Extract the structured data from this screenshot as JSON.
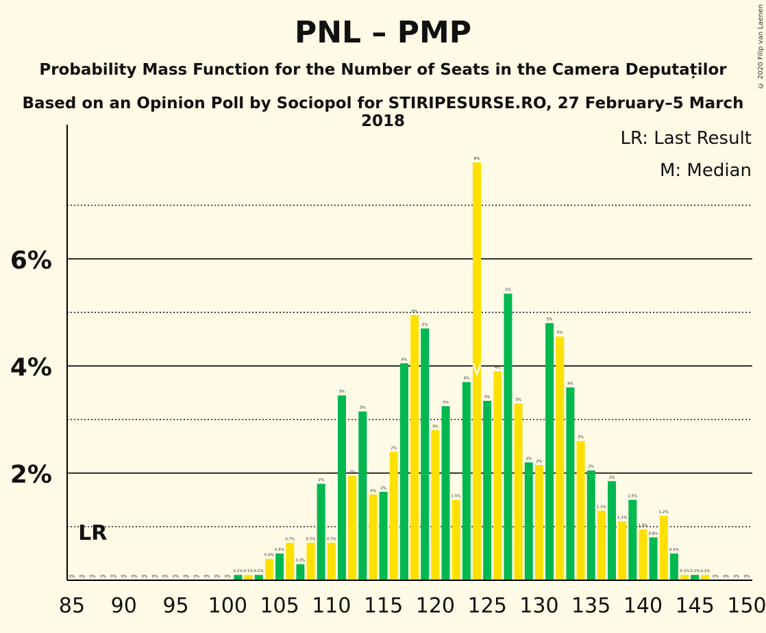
{
  "title": "PNL – PMP",
  "subtitle": "Probability Mass Function for the Number of Seats in the Camera Deputaților",
  "subtitle2": "Based on an Opinion Poll by Sociopol for STIRIPESURSE.RO, 27 February–5 March 2018",
  "copyright": "© 2020 Filip van Laenen",
  "colors": {
    "green": "#00b84f",
    "yellow": "#ffe000",
    "background": "#fffbe6",
    "axis": "#000000"
  },
  "chart_data": {
    "type": "bar",
    "x": [
      85,
      86,
      87,
      88,
      89,
      90,
      91,
      92,
      93,
      94,
      95,
      96,
      97,
      98,
      99,
      100,
      101,
      102,
      103,
      104,
      105,
      106,
      107,
      108,
      109,
      110,
      111,
      112,
      113,
      114,
      115,
      116,
      117,
      118,
      119,
      120,
      121,
      122,
      123,
      124,
      125,
      126,
      127,
      128,
      129,
      130,
      131,
      132,
      133,
      134,
      135,
      136,
      137,
      138,
      139,
      140,
      141,
      142,
      143,
      144,
      145,
      146,
      147,
      148,
      149,
      150
    ],
    "values": [
      0,
      0,
      0,
      0,
      0,
      0,
      0,
      0,
      0,
      0,
      0,
      0,
      0,
      0,
      0,
      0,
      0.1,
      0.1,
      0.1,
      0.4,
      0.5,
      0.7,
      0.3,
      0.7,
      1.8,
      0.7,
      3.45,
      1.95,
      3.15,
      1.6,
      1.65,
      2.4,
      4.05,
      4.95,
      4.7,
      2.8,
      3.25,
      1.5,
      3.7,
      7.8,
      3.35,
      3.9,
      5.35,
      3.3,
      2.2,
      2.15,
      4.8,
      4.55,
      3.6,
      2.6,
      2.05,
      1.3,
      1.85,
      1.1,
      1.5,
      0.95,
      0.8,
      1.2,
      0.5,
      0.1,
      0.1,
      0.1,
      0,
      0,
      0,
      0
    ],
    "labels": [
      "0%",
      "0%",
      "0%",
      "0%",
      "0%",
      "0%",
      "0%",
      "0%",
      "0%",
      "0%",
      "0%",
      "0%",
      "0%",
      "0%",
      "0%",
      "0%",
      "0.1%",
      "0.1%",
      "0.1%",
      "0.4%",
      "0.5%",
      "0.7%",
      "0.3%",
      "0.7%",
      "2%",
      "0.7%",
      "3%",
      "2%",
      "3%",
      "2%",
      "2%",
      "2%",
      "4%",
      "5%",
      "5%",
      "3%",
      "3%",
      "1.5%",
      "4%",
      "8%",
      "3%",
      "4%",
      "5%",
      "3%",
      "2%",
      "2%",
      "5%",
      "5%",
      "4%",
      "3%",
      "2%",
      "1.3%",
      "2%",
      "1.1%",
      "1.5%",
      "1.0%",
      "0.8%",
      "1.2%",
      "0.5%",
      "0.1%",
      "0.1%",
      "0.1%",
      "0%",
      "0%",
      "0%",
      "0%"
    ],
    "x_ticks": [
      "85",
      "90",
      "95",
      "100",
      "105",
      "110",
      "115",
      "120",
      "125",
      "130",
      "135",
      "140",
      "145",
      "150"
    ],
    "y_ticks": [
      "2%",
      "4%",
      "6%"
    ],
    "ylim": [
      0,
      8.5
    ],
    "last_result": {
      "seat": 87,
      "label": "LR"
    },
    "median": {
      "seat": 124
    },
    "legend": {
      "lr": "LR: Last Result",
      "median": "M: Median",
      "position": "top-right"
    },
    "grid": true,
    "xlabel": "",
    "ylabel": ""
  }
}
